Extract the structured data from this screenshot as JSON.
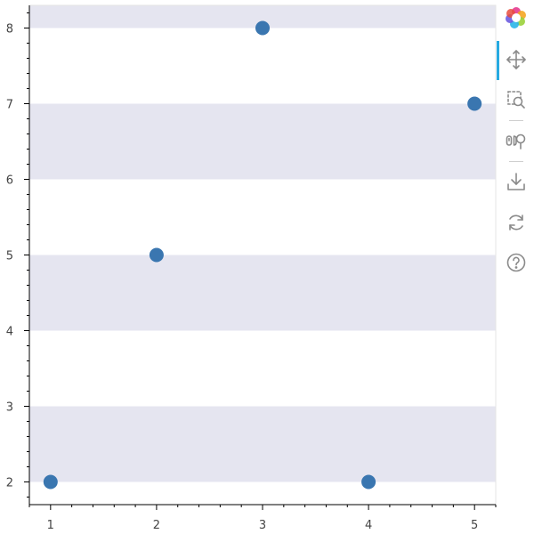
{
  "chart_data": {
    "type": "scatter",
    "title": "",
    "xlabel": "",
    "ylabel": "",
    "x": [
      1,
      2,
      3,
      4,
      5
    ],
    "y": [
      2,
      5,
      8,
      2,
      7
    ],
    "xlim": [
      0.8,
      5.2
    ],
    "ylim": [
      1.7,
      8.3
    ],
    "x_ticks": [
      "1",
      "2",
      "3",
      "4",
      "5"
    ],
    "y_ticks": [
      "2",
      "3",
      "4",
      "5",
      "6",
      "7",
      "8"
    ],
    "bands": [
      [
        2,
        3
      ],
      [
        4,
        5
      ],
      [
        6,
        7
      ],
      [
        8,
        9
      ]
    ],
    "grid": false,
    "marker_color": "#3a76b0",
    "band_color": "#e5e5f0"
  },
  "toolbar": {
    "tools": [
      "bokeh-logo-icon",
      "pan-icon",
      "box-zoom-icon",
      "wheel-zoom-icon",
      "save-icon",
      "reset-icon",
      "help-icon"
    ],
    "active_color": "#26aae1",
    "icon_color": "#8a8a8a"
  }
}
